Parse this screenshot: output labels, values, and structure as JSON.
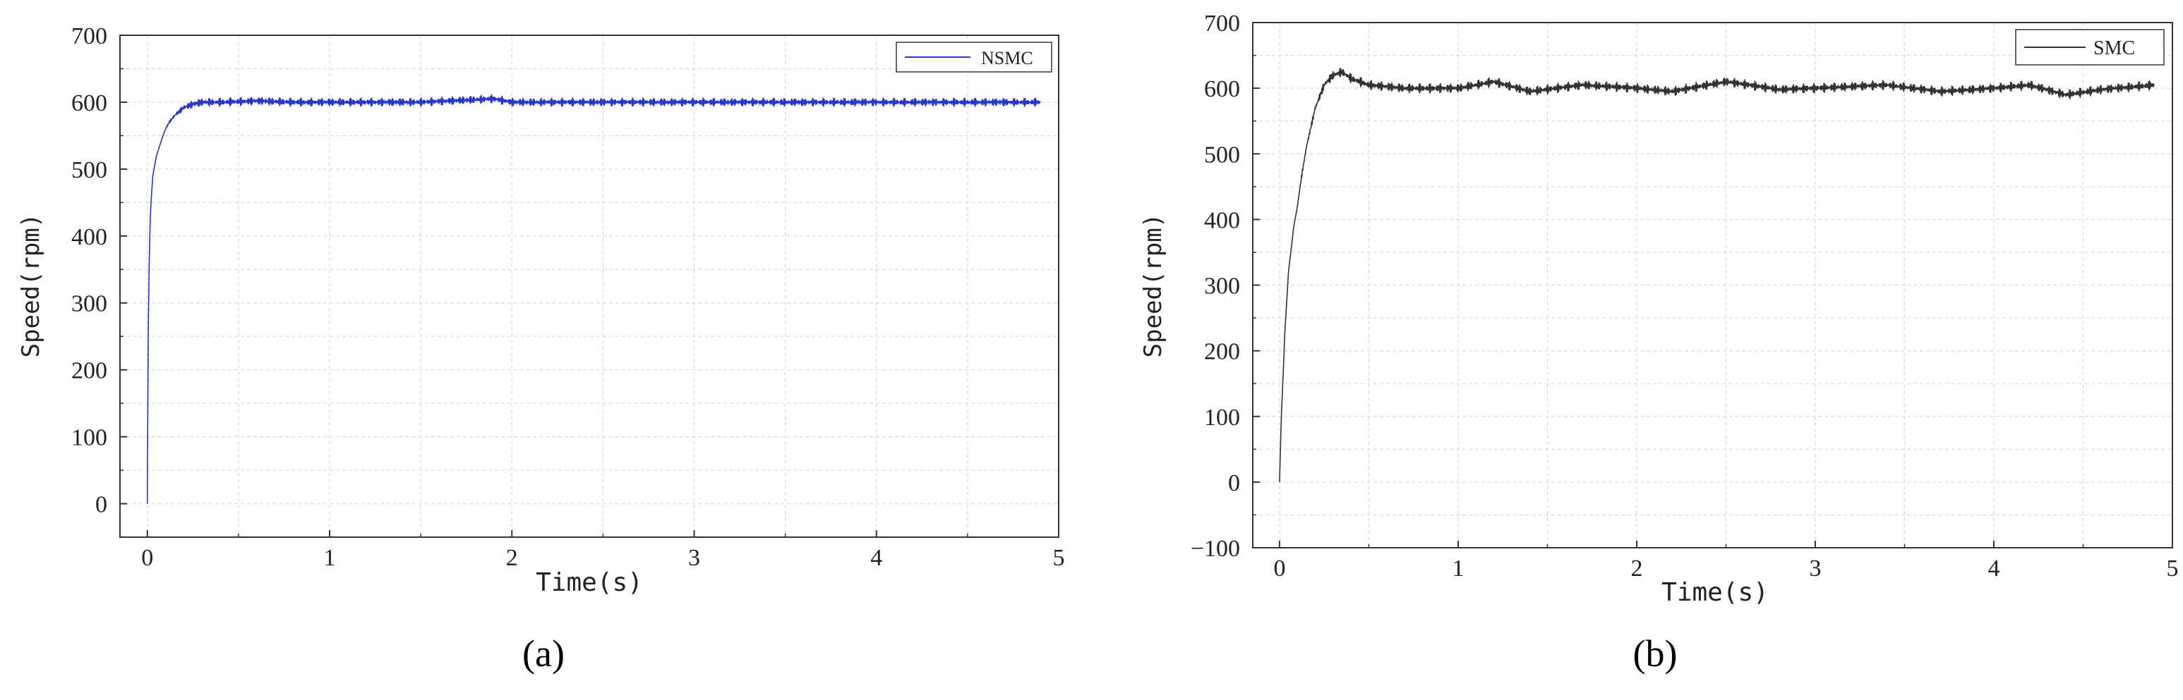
{
  "chart_data": [
    {
      "panel": "a",
      "panel_label": "(a)",
      "type": "line",
      "xlabel": "Time(s)",
      "ylabel": "Speed(rpm)",
      "xlim": [
        -0.15,
        5.0
      ],
      "ylim": [
        -50,
        700
      ],
      "x_ticks": [
        0,
        1,
        2,
        3,
        4,
        5
      ],
      "x_tick_labels": [
        "0",
        "1",
        "2",
        "3",
        "4",
        "5"
      ],
      "y_ticks": [
        0,
        100,
        200,
        300,
        400,
        500,
        600,
        700
      ],
      "y_tick_labels": [
        "0",
        "100",
        "200",
        "300",
        "400",
        "500",
        "600",
        "700"
      ],
      "grid": true,
      "legend": "top-right",
      "series": [
        {
          "name": "NSMC",
          "color": "#2a35c9",
          "x": [
            0,
            0.005,
            0.01,
            0.015,
            0.02,
            0.03,
            0.05,
            0.08,
            0.1,
            0.12,
            0.15,
            0.2,
            0.25,
            0.3,
            0.4,
            0.6,
            0.8,
            1.0,
            1.5,
            1.9,
            2.0,
            2.5,
            3.0,
            3.5,
            4.0,
            4.5,
            4.9
          ],
          "values": [
            0,
            250,
            350,
            420,
            450,
            490,
            520,
            545,
            560,
            570,
            580,
            592,
            597,
            600,
            600,
            602,
            600,
            600,
            600,
            605,
            600,
            600,
            600,
            600,
            600,
            600,
            600
          ],
          "ripple": 7
        }
      ]
    },
    {
      "panel": "b",
      "panel_label": "(b)",
      "type": "line",
      "xlabel": "Time(s)",
      "ylabel": "Speed(rpm)",
      "xlim": [
        -0.15,
        5.0
      ],
      "ylim": [
        -100,
        700
      ],
      "x_ticks": [
        0,
        1,
        2,
        3,
        4,
        5
      ],
      "x_tick_labels": [
        "0",
        "1",
        "2",
        "3",
        "4",
        "5"
      ],
      "y_ticks": [
        -100,
        0,
        100,
        200,
        300,
        400,
        500,
        600,
        700
      ],
      "y_tick_labels": [
        "−100",
        "0",
        "100",
        "200",
        "300",
        "400",
        "500",
        "600",
        "700"
      ],
      "grid": true,
      "legend": "top-right",
      "series": [
        {
          "name": "SMC",
          "color": "#333333",
          "x": [
            0,
            0.01,
            0.03,
            0.05,
            0.08,
            0.1,
            0.12,
            0.15,
            0.2,
            0.25,
            0.3,
            0.35,
            0.4,
            0.5,
            0.7,
            1.0,
            1.2,
            1.4,
            1.7,
            2.0,
            2.2,
            2.5,
            2.8,
            3.0,
            3.4,
            3.7,
            4.0,
            4.2,
            4.4,
            4.6,
            4.9
          ],
          "values": [
            0,
            100,
            230,
            320,
            390,
            420,
            460,
            510,
            570,
            605,
            620,
            625,
            615,
            605,
            600,
            600,
            610,
            595,
            605,
            600,
            595,
            610,
            598,
            600,
            605,
            595,
            600,
            605,
            590,
            598,
            605
          ],
          "ripple": 8
        }
      ]
    }
  ]
}
